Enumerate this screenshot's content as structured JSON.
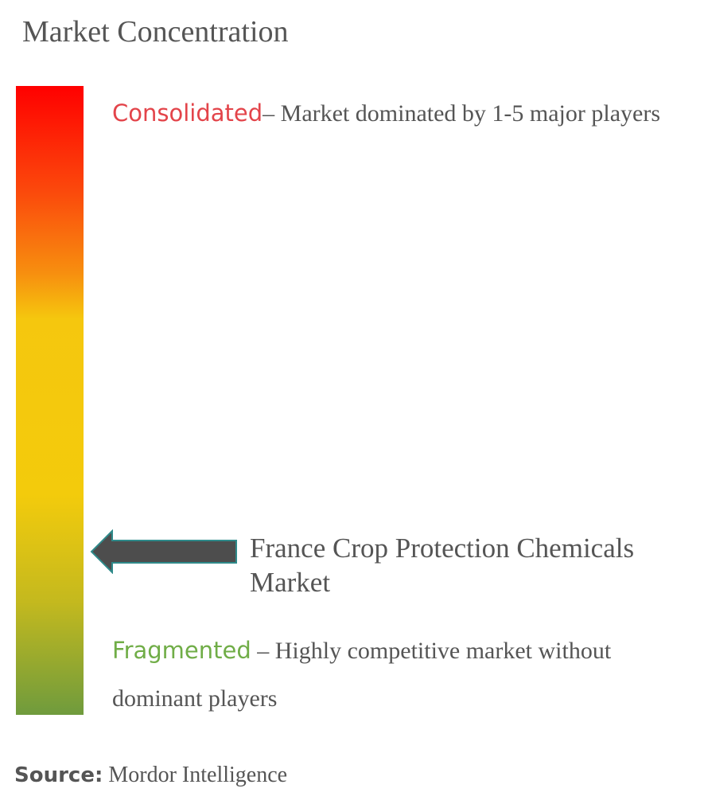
{
  "title": "Market Concentration",
  "scale": {
    "marker_position_fraction_from_top": 0.74,
    "top_color": "#ff0000",
    "middle_color": "#f3cb0c",
    "bottom_color": "#6f9b3d"
  },
  "consolidated": {
    "keyword": "Consolidated",
    "description": "– Market dominated by 1-5 major players",
    "color": "#e3444a"
  },
  "fragmented": {
    "keyword": "Fragmented",
    "description": " – Highly competitive market without dominant players",
    "color": "#70ad47"
  },
  "marker": {
    "label": "France Crop Protection Chemicals Market",
    "icon": "arrow-left-icon",
    "color": "#4d4d4d"
  },
  "source": {
    "label": "Source:",
    "value": " Mordor Intelligence"
  }
}
